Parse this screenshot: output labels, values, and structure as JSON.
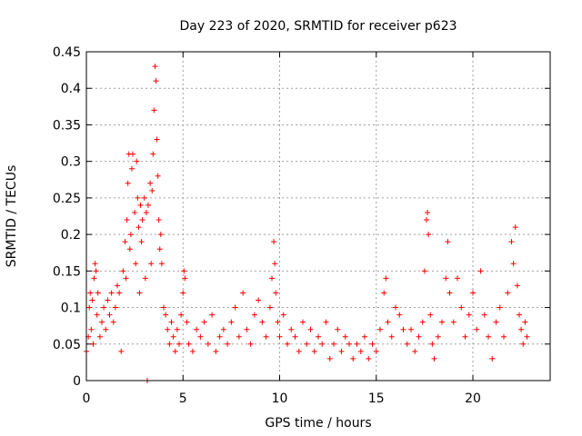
{
  "chart_data": {
    "type": "scatter",
    "title": "Day 223 of 2020, SRMTID for receiver p623",
    "xlabel": "GPS time / hours",
    "ylabel": "SRMTID / TECUs",
    "xlim": [
      0,
      24
    ],
    "ylim": [
      0,
      0.45
    ],
    "x_ticks": [
      0,
      5,
      10,
      15,
      20
    ],
    "x_tick_labels": [
      "0",
      "5",
      "10",
      "15",
      "20"
    ],
    "y_ticks": [
      0,
      0.05,
      0.1,
      0.15,
      0.2,
      0.25,
      0.3,
      0.35,
      0.4,
      0.45
    ],
    "y_tick_labels": [
      "0",
      "0.05",
      "0.1",
      "0.15",
      "0.2",
      "0.25",
      "0.3",
      "0.35",
      "0.4",
      "0.45"
    ],
    "grid": true,
    "marker": "+",
    "color": "#ff0000",
    "series": [
      {
        "name": "SRMTID",
        "points": [
          [
            0.0,
            0.04
          ],
          [
            0.1,
            0.06
          ],
          [
            0.15,
            0.1
          ],
          [
            0.2,
            0.12
          ],
          [
            0.25,
            0.07
          ],
          [
            0.3,
            0.11
          ],
          [
            0.35,
            0.05
          ],
          [
            0.4,
            0.14
          ],
          [
            0.45,
            0.16
          ],
          [
            0.5,
            0.15
          ],
          [
            0.55,
            0.09
          ],
          [
            0.6,
            0.12
          ],
          [
            0.7,
            0.06
          ],
          [
            0.8,
            0.08
          ],
          [
            0.9,
            0.1
          ],
          [
            1.0,
            0.07
          ],
          [
            1.1,
            0.11
          ],
          [
            1.2,
            0.09
          ],
          [
            1.3,
            0.12
          ],
          [
            1.4,
            0.08
          ],
          [
            1.5,
            0.1
          ],
          [
            1.6,
            0.13
          ],
          [
            1.7,
            0.12
          ],
          [
            1.8,
            0.04
          ],
          [
            1.9,
            0.15
          ],
          [
            2.0,
            0.19
          ],
          [
            2.05,
            0.14
          ],
          [
            2.1,
            0.22
          ],
          [
            2.15,
            0.27
          ],
          [
            2.2,
            0.31
          ],
          [
            2.25,
            0.18
          ],
          [
            2.3,
            0.2
          ],
          [
            2.35,
            0.29
          ],
          [
            2.4,
            0.31
          ],
          [
            2.5,
            0.23
          ],
          [
            2.55,
            0.16
          ],
          [
            2.6,
            0.3
          ],
          [
            2.65,
            0.25
          ],
          [
            2.7,
            0.21
          ],
          [
            2.75,
            0.12
          ],
          [
            2.8,
            0.24
          ],
          [
            2.85,
            0.19
          ],
          [
            2.9,
            0.22
          ],
          [
            3.0,
            0.25
          ],
          [
            3.05,
            0.14
          ],
          [
            3.1,
            0.23
          ],
          [
            3.15,
            0.0
          ],
          [
            3.2,
            0.24
          ],
          [
            3.3,
            0.27
          ],
          [
            3.35,
            0.16
          ],
          [
            3.4,
            0.26
          ],
          [
            3.45,
            0.31
          ],
          [
            3.5,
            0.37
          ],
          [
            3.55,
            0.43
          ],
          [
            3.6,
            0.41
          ],
          [
            3.65,
            0.33
          ],
          [
            3.7,
            0.28
          ],
          [
            3.75,
            0.22
          ],
          [
            3.8,
            0.18
          ],
          [
            3.85,
            0.2
          ],
          [
            3.9,
            0.16
          ],
          [
            4.0,
            0.1
          ],
          [
            4.1,
            0.09
          ],
          [
            4.2,
            0.07
          ],
          [
            4.3,
            0.05
          ],
          [
            4.4,
            0.08
          ],
          [
            4.5,
            0.06
          ],
          [
            4.6,
            0.04
          ],
          [
            4.7,
            0.07
          ],
          [
            4.8,
            0.05
          ],
          [
            4.9,
            0.09
          ],
          [
            5.0,
            0.12
          ],
          [
            5.05,
            0.15
          ],
          [
            5.1,
            0.14
          ],
          [
            5.2,
            0.08
          ],
          [
            5.3,
            0.05
          ],
          [
            5.5,
            0.04
          ],
          [
            5.7,
            0.07
          ],
          [
            5.9,
            0.06
          ],
          [
            6.1,
            0.08
          ],
          [
            6.3,
            0.05
          ],
          [
            6.5,
            0.09
          ],
          [
            6.7,
            0.04
          ],
          [
            6.9,
            0.06
          ],
          [
            7.1,
            0.07
          ],
          [
            7.3,
            0.05
          ],
          [
            7.5,
            0.08
          ],
          [
            7.7,
            0.1
          ],
          [
            7.9,
            0.06
          ],
          [
            8.1,
            0.12
          ],
          [
            8.3,
            0.07
          ],
          [
            8.5,
            0.05
          ],
          [
            8.7,
            0.09
          ],
          [
            8.9,
            0.11
          ],
          [
            9.1,
            0.08
          ],
          [
            9.3,
            0.06
          ],
          [
            9.5,
            0.1
          ],
          [
            9.6,
            0.14
          ],
          [
            9.7,
            0.19
          ],
          [
            9.75,
            0.16
          ],
          [
            9.8,
            0.12
          ],
          [
            9.9,
            0.08
          ],
          [
            10.0,
            0.06
          ],
          [
            10.2,
            0.09
          ],
          [
            10.4,
            0.05
          ],
          [
            10.6,
            0.07
          ],
          [
            10.8,
            0.06
          ],
          [
            11.0,
            0.04
          ],
          [
            11.2,
            0.08
          ],
          [
            11.4,
            0.05
          ],
          [
            11.6,
            0.07
          ],
          [
            11.8,
            0.04
          ],
          [
            12.0,
            0.06
          ],
          [
            12.2,
            0.05
          ],
          [
            12.4,
            0.08
          ],
          [
            12.6,
            0.03
          ],
          [
            12.8,
            0.05
          ],
          [
            13.0,
            0.07
          ],
          [
            13.2,
            0.04
          ],
          [
            13.4,
            0.06
          ],
          [
            13.6,
            0.05
          ],
          [
            13.8,
            0.03
          ],
          [
            14.0,
            0.05
          ],
          [
            14.2,
            0.04
          ],
          [
            14.4,
            0.06
          ],
          [
            14.6,
            0.03
          ],
          [
            14.8,
            0.05
          ],
          [
            15.0,
            0.04
          ],
          [
            15.2,
            0.07
          ],
          [
            15.4,
            0.12
          ],
          [
            15.5,
            0.14
          ],
          [
            15.6,
            0.08
          ],
          [
            15.8,
            0.06
          ],
          [
            16.0,
            0.1
          ],
          [
            16.2,
            0.09
          ],
          [
            16.4,
            0.07
          ],
          [
            16.6,
            0.05
          ],
          [
            16.8,
            0.07
          ],
          [
            17.0,
            0.04
          ],
          [
            17.2,
            0.06
          ],
          [
            17.4,
            0.08
          ],
          [
            17.5,
            0.15
          ],
          [
            17.6,
            0.22
          ],
          [
            17.65,
            0.23
          ],
          [
            17.7,
            0.2
          ],
          [
            17.8,
            0.09
          ],
          [
            17.9,
            0.05
          ],
          [
            18.0,
            0.03
          ],
          [
            18.2,
            0.06
          ],
          [
            18.4,
            0.08
          ],
          [
            18.6,
            0.14
          ],
          [
            18.7,
            0.19
          ],
          [
            18.8,
            0.12
          ],
          [
            19.0,
            0.08
          ],
          [
            19.2,
            0.14
          ],
          [
            19.4,
            0.1
          ],
          [
            19.6,
            0.06
          ],
          [
            19.8,
            0.09
          ],
          [
            20.0,
            0.12
          ],
          [
            20.2,
            0.07
          ],
          [
            20.4,
            0.15
          ],
          [
            20.6,
            0.09
          ],
          [
            20.8,
            0.06
          ],
          [
            21.0,
            0.03
          ],
          [
            21.2,
            0.08
          ],
          [
            21.4,
            0.1
          ],
          [
            21.6,
            0.06
          ],
          [
            21.8,
            0.12
          ],
          [
            22.0,
            0.19
          ],
          [
            22.1,
            0.16
          ],
          [
            22.2,
            0.21
          ],
          [
            22.3,
            0.13
          ],
          [
            22.4,
            0.09
          ],
          [
            22.5,
            0.07
          ],
          [
            22.6,
            0.05
          ],
          [
            22.7,
            0.08
          ],
          [
            22.8,
            0.06
          ]
        ]
      }
    ]
  }
}
